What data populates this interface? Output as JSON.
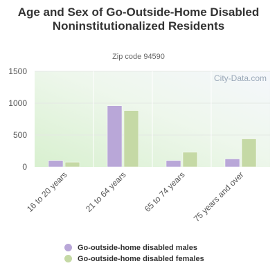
{
  "chart_data": {
    "type": "bar",
    "title": "Age and Sex of Go-Outside-Home Disabled Noninstitutionalized Residents",
    "subtitle": "Zip code 94590",
    "categories": [
      "16 to 20 years",
      "21 to 64 years",
      "65 to 74 years",
      "75 years and over"
    ],
    "series": [
      {
        "name": "Go-outside-home disabled males",
        "values": [
          100,
          960,
          100,
          125
        ],
        "color": "#b9a7d8"
      },
      {
        "name": "Go-outside-home disabled females",
        "values": [
          75,
          885,
          230,
          440
        ],
        "color": "#c5d9a5"
      }
    ],
    "yticks": [
      "0",
      "500",
      "1000",
      "1500"
    ],
    "ylim": [
      0,
      1500
    ],
    "grid": true,
    "legend_position": "bottom"
  },
  "watermark": "City-Data.com"
}
